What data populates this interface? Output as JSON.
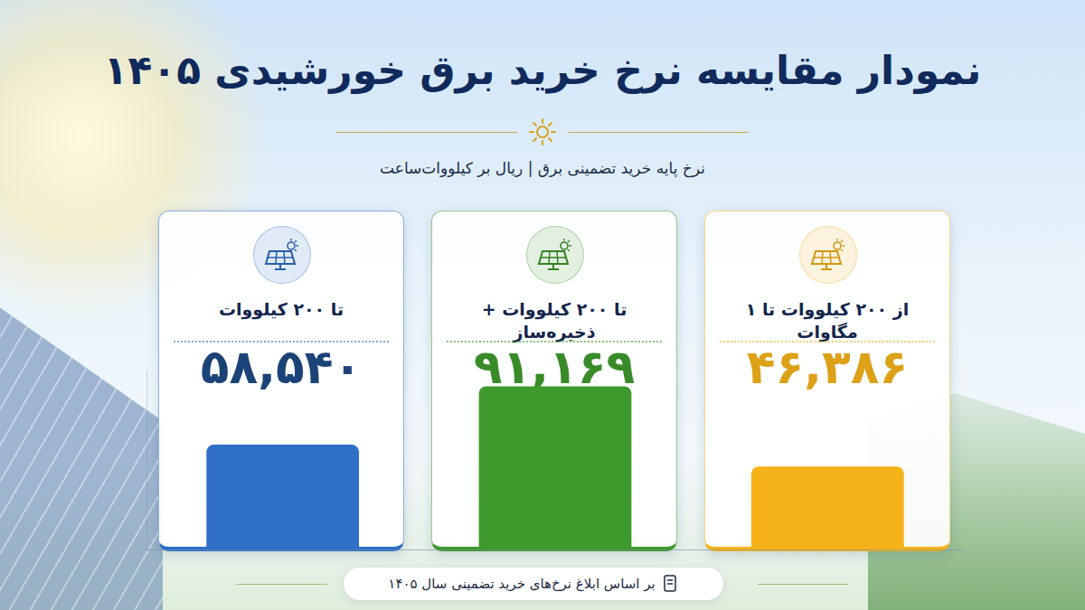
{
  "chart_data": {
    "type": "bar",
    "title": "نمودار مقایسه نرخ خرید برق خورشیدی ۱۴۰۵",
    "subtitle": "نرخ پایه خرید تضمینی برق | ریال بر کیلووات‌ساعت",
    "footnote": "بر اساس ابلاغ نرخ‌های خرید تضمینی سال ۱۴۰۵",
    "categories": [
      "از ۲۰۰ کیلووات  تا ۱ مگاوات",
      "تا ۲۰۰ کیلووات + ذخیره‌ساز",
      "تا ۲۰۰ کیلووات"
    ],
    "values": [
      46386,
      91169,
      58540
    ],
    "value_labels": [
      "۴۶,۳۸۶",
      "۹۱,۱۶۹",
      "۵۸,۵۴۰"
    ],
    "colors": [
      "#f5b319",
      "#3e9a2c",
      "#2f6fc6"
    ],
    "ylim": [
      0,
      100000
    ],
    "grid": false,
    "data_labels": true,
    "tick_labels": false
  }
}
